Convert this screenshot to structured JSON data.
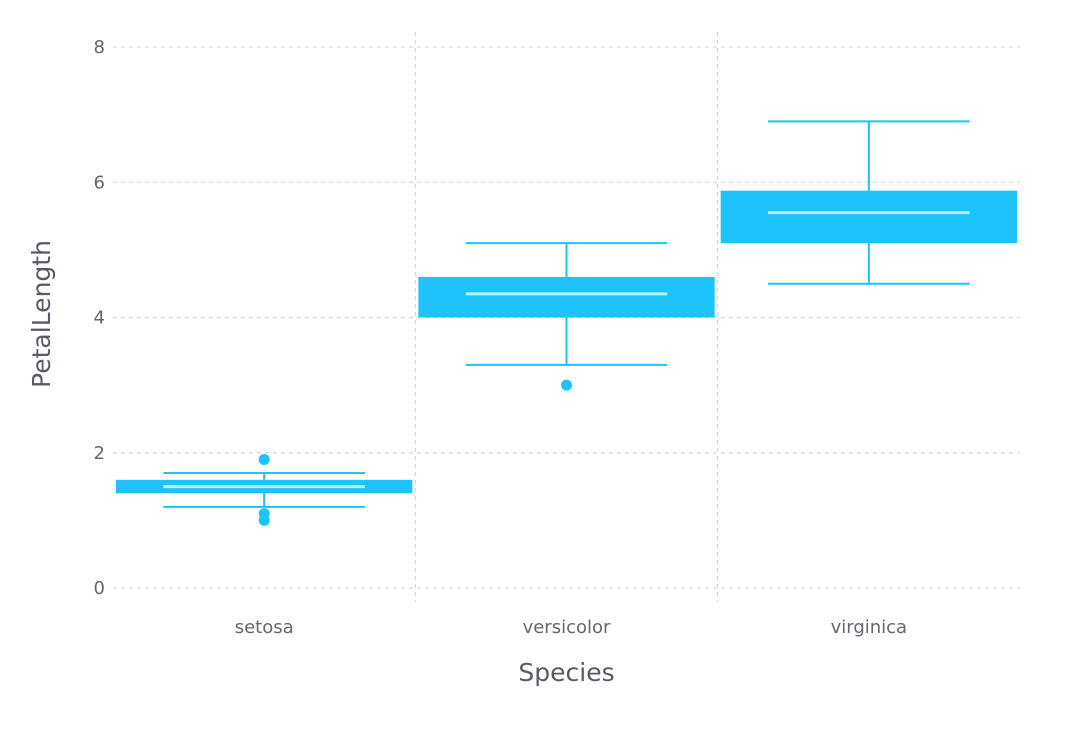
{
  "chart_data": {
    "type": "boxplot",
    "title": "",
    "xlabel": "Species",
    "ylabel": "PetalLength",
    "categories": [
      "setosa",
      "versicolor",
      "virginica"
    ],
    "ylim": [
      0,
      8
    ],
    "yticks": [
      0,
      2,
      4,
      6,
      8
    ],
    "grid": true,
    "color": "#1ec2fd",
    "median_color": "#b9f1ec",
    "boxes": [
      {
        "category": "setosa",
        "whisker_low": 1.2,
        "q1": 1.4,
        "median": 1.5,
        "q3": 1.6,
        "whisker_high": 1.7,
        "outliers": [
          1.0,
          1.1,
          1.9
        ]
      },
      {
        "category": "versicolor",
        "whisker_low": 3.3,
        "q1": 4.0,
        "median": 4.35,
        "q3": 4.6,
        "whisker_high": 5.1,
        "outliers": [
          3.0
        ]
      },
      {
        "category": "virginica",
        "whisker_low": 4.5,
        "q1": 5.1,
        "median": 5.55,
        "q3": 5.875,
        "whisker_high": 6.9,
        "outliers": []
      }
    ]
  }
}
